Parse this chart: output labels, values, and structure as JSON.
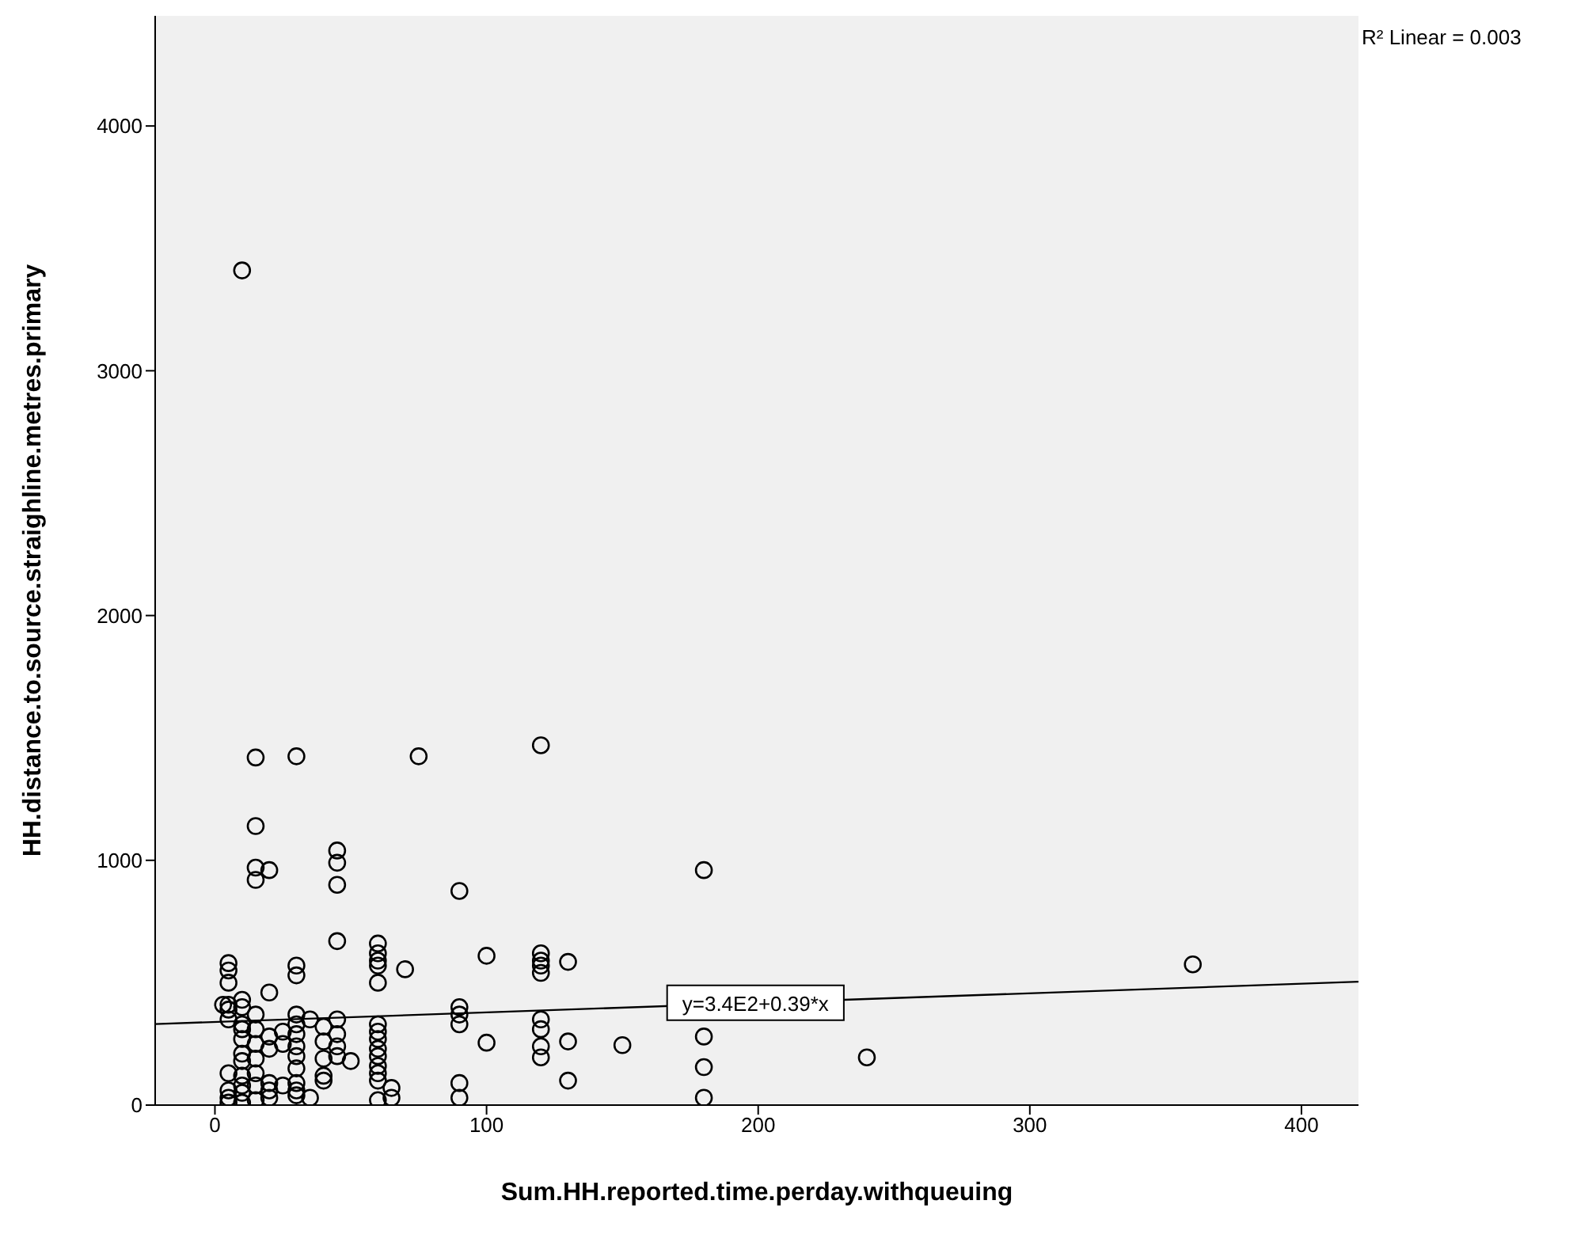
{
  "chart_data": {
    "type": "scatter",
    "xlabel": "Sum.HH.reported.time.perday.withqueuing",
    "ylabel": "HH.distance.to.source.straighline.metres.primary",
    "xlim": [
      -22,
      421
    ],
    "ylim": [
      0,
      4450
    ],
    "xticks": [
      0,
      100,
      200,
      300,
      400
    ],
    "yticks": [
      0,
      1000,
      2000,
      3000,
      4000
    ],
    "grid": false,
    "marker": "circle",
    "series": [
      {
        "color": "#000000",
        "x": [
          3,
          5,
          5,
          5,
          5,
          5,
          5,
          5,
          5,
          5,
          5,
          10,
          10,
          10,
          10,
          10,
          10,
          10,
          10,
          10,
          10,
          10,
          10,
          15,
          15,
          15,
          15,
          15,
          15,
          15,
          15,
          15,
          15,
          15,
          20,
          20,
          20,
          20,
          20,
          20,
          20,
          25,
          25,
          25,
          30,
          30,
          30,
          30,
          30,
          30,
          30,
          30,
          30,
          30,
          30,
          30,
          35,
          35,
          40,
          40,
          40,
          40,
          40,
          45,
          45,
          45,
          45,
          45,
          45,
          45,
          45,
          50,
          60,
          60,
          60,
          60,
          60,
          60,
          60,
          60,
          60,
          60,
          60,
          60,
          60,
          60,
          65,
          65,
          70,
          75,
          90,
          90,
          90,
          90,
          90,
          90,
          100,
          100,
          120,
          120,
          120,
          120,
          120,
          120,
          120,
          120,
          120,
          130,
          130,
          130,
          150,
          180,
          180,
          180,
          180,
          240,
          360
        ],
        "values": [
          410,
          580,
          550,
          500,
          410,
          390,
          350,
          130,
          60,
          30,
          10,
          3410,
          430,
          400,
          330,
          310,
          270,
          210,
          180,
          120,
          80,
          50,
          10,
          1420,
          1140,
          970,
          920,
          370,
          310,
          250,
          190,
          130,
          80,
          20,
          960,
          460,
          280,
          230,
          90,
          60,
          30,
          300,
          250,
          80,
          1425,
          570,
          530,
          370,
          330,
          290,
          240,
          200,
          150,
          90,
          60,
          40,
          350,
          30,
          320,
          260,
          190,
          120,
          100,
          1040,
          990,
          900,
          670,
          350,
          290,
          240,
          200,
          180,
          660,
          620,
          590,
          570,
          500,
          330,
          300,
          270,
          230,
          200,
          160,
          130,
          100,
          20,
          70,
          30,
          555,
          1425,
          875,
          400,
          370,
          330,
          90,
          30,
          610,
          255,
          1470,
          620,
          590,
          570,
          540,
          350,
          310,
          240,
          195,
          585,
          260,
          100,
          245,
          960,
          280,
          155,
          30,
          195,
          575
        ]
      },
      {
        "type": "line",
        "color": "#000000",
        "marker": "none",
        "x": [
          -22,
          421
        ],
        "values": [
          331,
          504
        ]
      }
    ],
    "annotations": [
      "R² Linear = 0.003",
      {
        "text": "y=3.4E2+0.39*x",
        "x": 199,
        "y": 418
      }
    ]
  }
}
